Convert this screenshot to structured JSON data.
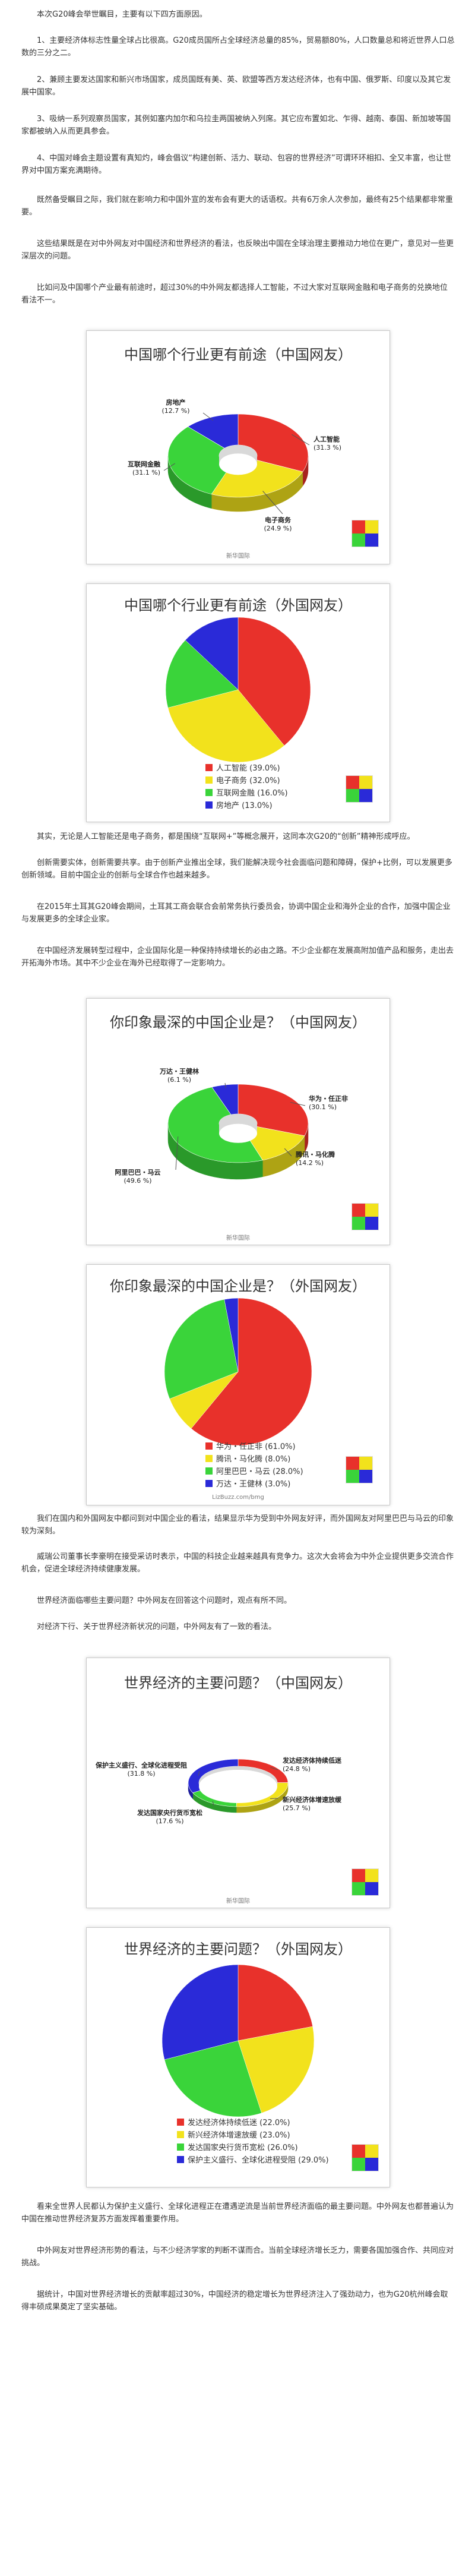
{
  "paragraphs": [
    {
      "top": 0,
      "text": "本次G20峰会举世瞩目，主要有以下四方面原因。"
    },
    {
      "top": 0,
      "text": "1、主要经济体标志性量全球占比很高。G20成员国所占全球经济总量的85%，贸易额80%，人口数量总和将近世界人口总数的三分之二。"
    },
    {
      "top": 0,
      "text": "2、兼顾主要发达国家和新兴市场国家，成员国既有美、英、欧盟等西方发达经济体，也有中国、俄罗斯、印度以及其它发展中国家。"
    },
    {
      "top": 0,
      "text": "3、吸纳一系列观察员国家，其例如塞内加尔和乌拉圭两国被纳入列席。其它应布置如北、乍得、越南、泰国、新加坡等国家都被纳入从而更具参会。"
    },
    {
      "top": 0,
      "text": "4、中国对峰会主题设置有真知灼，峰会倡议“构建创新、活力、联动、包容的世界经济”可谓环环相扣、全又丰富，也让世界对中国方案充满期待。"
    },
    {
      "top": 0,
      "text": "既然备受瞩目之际，我们就在影响力和中国外宣的发布会有更大的话语权。共有6万余人次参加，最终有25个结果都非常重要。"
    },
    {
      "top": 0,
      "text": "这些结果既是在对中外网友对中国经济和世界经济的看法，也反映出中国在全球治理主要推动力地位在更广，意见对一些更深层次的问题。"
    },
    {
      "top": 0,
      "text": "比如问及中国哪个产业最有前途时，超过30%的中外网友都选择人工智能，不过大家对互联网金融和电子商务的兑换地位看法不一。"
    },
    {
      "top": 0,
      "text": "其实，无论是人工智能还是电子商务，都是围绕“互联网+”等概念展开，这同本次G20的“创新”精神形成呼应。"
    },
    {
      "top": 0,
      "text": "创新需要实体，创新需要共享。由于创新产业推出全球，我们能解决现今社会面临问题和障碍，保护+比例，可以发展更多创新领域。目前中国企业的创新与全球合作也越来越多。"
    },
    {
      "top": 0,
      "text": "在2015年土耳其G20峰会期间，土耳其工商会联合会前常务执行委员会，协调中国企业和海外企业的合作，加强中国企业与发展更多的全球企业家。"
    },
    {
      "top": 0,
      "text": "在中国经济发展转型过程中，企业国际化是一种保持持续增长的必由之路。不少企业都在发展高附加值产品和服务，走出去开拓海外市场。其中不少企业在海外已经取得了一定影响力。"
    },
    {
      "top": 0,
      "text": "我们在国内和外国网友中都问到对中国企业的看法，结果显示华为受到中外网友好评，而外国网友对阿里巴巴与马云的印象较为深刻。"
    },
    {
      "top": 0,
      "text": "威瑞公司董事长李豪明在接受采访时表示，中国的科技企业越来越具有竞争力。这次大会将会为中外企业提供更多交流合作机会，促进全球经济持续健康发展。"
    },
    {
      "top": 0,
      "text": "世界经济面临哪些主要问题？中外网友在回答这个问题时，观点有所不同。"
    },
    {
      "top": 0,
      "text": "对经济下行、关于世界经济新状况的问题，中外网友有了一致的看法。"
    },
    {
      "top": 0,
      "text": "看来全世界人民都认为保护主义盛行、全球化进程正在遭遇逆流是当前世界经济面临的最主要问题。中外网友也都普遍认为中国在推动世界经济复苏方面发挥着重要作用。"
    },
    {
      "top": 0,
      "text": "中外网友对世界经济形势的看法，与不少经济学家的判断不谋而合。当前全球经济增长乏力，需要各国加强合作、共同应对挑战。"
    },
    {
      "top": 0,
      "text": "据统计，中国对世界经济增长的贡献率超过30%，中国经济的稳定增长为世界经济注入了强劲动力，也为G20杭州峰会取得丰硕成果奠定了坚实基础。"
    }
  ],
  "charts": [
    {
      "title": "中国哪个行业更有前途（中国网友）",
      "source": "新华国际",
      "logo": "新华网国际"
    },
    {
      "title": "中国哪个行业更有前途（外国网友）",
      "source": "",
      "logo": "新华网国际"
    },
    {
      "title": "你印象最深的中国企业是？（中国网友）",
      "source": "新华国际",
      "logo": "新华网国际"
    },
    {
      "title": "你印象最深的中国企业是？（外国网友）",
      "source": "LizBuzz.com/bmg",
      "logo": "新华网国际"
    },
    {
      "title": "世界经济的主要问题？（中国网友）",
      "source": "新华国际",
      "logo": "新华网国际"
    },
    {
      "title": "世界经济的主要问题？（外国网友）",
      "source": "",
      "logo": "新华网国际"
    }
  ],
  "chart_data": [
    {
      "type": "pie",
      "variant": "3d-donut",
      "title": "中国哪个行业更有前途（中国网友）",
      "categories": [
        "人工智能",
        "电子商务",
        "互联网金融",
        "房地产"
      ],
      "values": [
        31.3,
        24.9,
        31.1,
        12.7
      ],
      "colors": [
        "#e8312b",
        "#f2e21c",
        "#3ad43a",
        "#2a2ad8"
      ],
      "labels": [
        "人工智能\n(31.3 %)",
        "电子商务\n(24.9 %)",
        "互联网金融\n(31.1 %)",
        "房地产\n(12.7 %)"
      ]
    },
    {
      "type": "pie",
      "variant": "flat",
      "title": "中国哪个行业更有前途（外国网友）",
      "categories": [
        "人工智能",
        "电子商务",
        "互联网金融",
        "房地产"
      ],
      "values": [
        39.0,
        32.0,
        16.0,
        13.0
      ],
      "colors": [
        "#e8312b",
        "#f2e21c",
        "#3ad43a",
        "#2a2ad8"
      ],
      "legend": [
        "人工智能 (39.0%)",
        "电子商务 (32.0%)",
        "互联网金融 (16.0%)",
        "房地产 (13.0%)"
      ]
    },
    {
      "type": "pie",
      "variant": "3d-donut",
      "title": "你印象最深的中国企业是？（中国网友）",
      "categories": [
        "华为・任正非",
        "腾讯・马化腾",
        "阿里巴巴・马云",
        "万达・王健林"
      ],
      "values": [
        30.1,
        14.2,
        49.6,
        6.1
      ],
      "colors": [
        "#e8312b",
        "#f2e21c",
        "#3ad43a",
        "#2a2ad8"
      ],
      "labels": [
        "华为・任正非\n(30.1 %)",
        "腾讯・马化腾\n(14.2 %)",
        "阿里巴巴・马云\n(49.6 %)",
        "万达・王健林\n(6.1 %)"
      ]
    },
    {
      "type": "pie",
      "variant": "flat",
      "title": "你印象最深的中国企业是？（外国网友）",
      "categories": [
        "华为・任正非",
        "腾讯・马化腾",
        "阿里巴巴・马云",
        "万达・王健林"
      ],
      "values": [
        61.0,
        8.0,
        28.0,
        3.0
      ],
      "colors": [
        "#e8312b",
        "#f2e21c",
        "#3ad43a",
        "#2a2ad8"
      ],
      "legend": [
        "华为・任正非 (61.0%)",
        "腾讯・马化腾 (8.0%)",
        "阿里巴巴・马云 (28.0%)",
        "万达・王健林 (3.0%)"
      ]
    },
    {
      "type": "pie",
      "variant": "3d-donut-thin",
      "title": "世界经济的主要问题？（中国网友）",
      "categories": [
        "发达经济体持续低迷",
        "新兴经济体增速放缓",
        "发达国家央行货币宽松",
        "保护主义盛行、全球化进程受阻"
      ],
      "values": [
        24.8,
        25.7,
        17.6,
        31.8
      ],
      "colors": [
        "#e8312b",
        "#f2e21c",
        "#3ad43a",
        "#2a2ad8"
      ],
      "labels": [
        "发达经济体持续低迷\n(24.8 %)",
        "新兴经济体增速放缓\n(25.7 %)",
        "发达国家央行货币宽松\n(17.6 %)",
        "保护主义盛行、全球化进程受阻\n(31.8 %)"
      ]
    },
    {
      "type": "pie",
      "variant": "flat",
      "title": "世界经济的主要问题？（外国网友）",
      "categories": [
        "发达经济体持续低迷",
        "新兴经济体增速放缓",
        "发达国家央行货币宽松",
        "保护主义盛行、全球化进程受阻"
      ],
      "values": [
        22.0,
        23.0,
        26.0,
        29.0
      ],
      "colors": [
        "#e8312b",
        "#f2e21c",
        "#3ad43a",
        "#2a2ad8"
      ],
      "legend": [
        "发达经济体持续低迷 (22.0%)",
        "新兴经济体增速放缓 (23.0%)",
        "发达国家央行货币宽松 (26.0%)",
        "保护主义盛行、全球化进程受阻 (29.0%)"
      ]
    }
  ]
}
